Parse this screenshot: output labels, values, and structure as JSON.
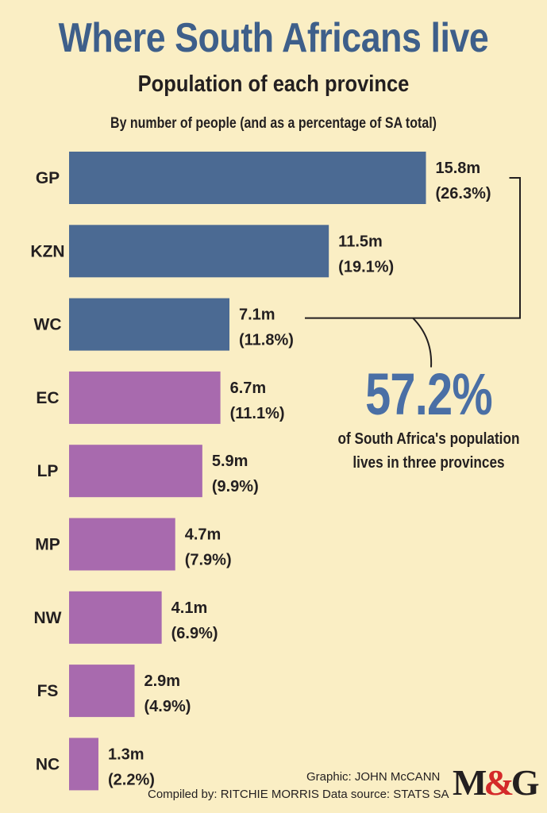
{
  "title": "Where South Africans live",
  "subtitle": "Population of each province",
  "description": "By number of people (and as a percentage of SA total)",
  "callout": {
    "value": "57.2%",
    "text_line1": "of South Africa's population",
    "text_line2": "lives in three provinces"
  },
  "credits": {
    "graphic": "Graphic: JOHN McCANN",
    "compiled": "Compiled by: RITCHIE MORRIS  Data source: STATS SA"
  },
  "logo": {
    "m": "M",
    "amp": "&",
    "g": "G"
  },
  "colors": {
    "top_three": "#4b6a93",
    "others": "#a86aae",
    "background": "#faeec4",
    "accent": "#4a6fa5"
  },
  "chart_data": {
    "type": "bar",
    "orientation": "horizontal",
    "categories": [
      "GP",
      "KZN",
      "WC",
      "EC",
      "LP",
      "MP",
      "NW",
      "FS",
      "NC"
    ],
    "values": [
      15.8,
      11.5,
      7.1,
      6.7,
      5.9,
      4.7,
      4.1,
      2.9,
      1.3
    ],
    "value_labels": [
      "15.8m",
      "11.5m",
      "7.1m",
      "6.7m",
      "5.9m",
      "4.7m",
      "4.1m",
      "2.9m",
      "1.3m"
    ],
    "percent_labels": [
      "(26.3%)",
      "(19.1%)",
      "(11.8%)",
      "(11.1%)",
      "(9.9%)",
      "(7.9%)",
      "(6.9%)",
      "(4.9%)",
      "(2.2%)"
    ],
    "highlighted": [
      true,
      true,
      true,
      false,
      false,
      false,
      false,
      false,
      false
    ],
    "grid": false
  }
}
